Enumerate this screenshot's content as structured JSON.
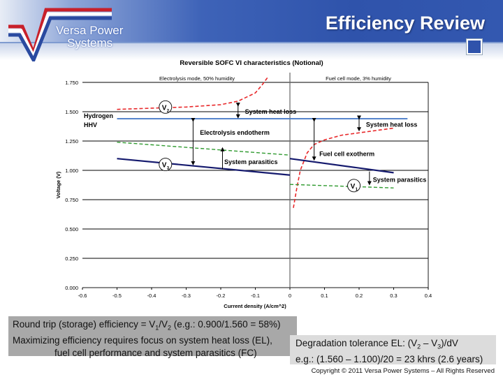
{
  "header": {
    "title": "Efficiency Review",
    "logo_text": [
      "Versa Power",
      "Systems"
    ]
  },
  "chart_data": {
    "type": "line",
    "title": "Reversible SOFC VI characteristics (Notional)",
    "xlabel": "Current density (A/cm^2)",
    "ylabel": "Voltage (V)",
    "xlim": [
      -0.6,
      0.4
    ],
    "ylim": [
      0,
      1.75
    ],
    "xticks": [
      "-0.6",
      "-0.5",
      "-0.4",
      "-0.3",
      "-0.2",
      "-0.1",
      "0",
      "0.1",
      "0.2",
      "0.3",
      "0.4"
    ],
    "yticks": [
      "0.000",
      "0.250",
      "0.500",
      "0.750",
      "1.000",
      "1.250",
      "1.500",
      "1.750"
    ],
    "grid": true,
    "region_labels": [
      "Electrolysis mode, 50% humidity",
      "Fuel cell mode, 3% humidity"
    ],
    "hhv_label": [
      "Hydrogen",
      "HHV"
    ],
    "colors": {
      "red": "#e8282a",
      "green": "#2f9a2f",
      "navy": "#151a6e",
      "blue": "#4a7cc8"
    },
    "series": [
      {
        "style": "red-dashed",
        "x": [
          -0.5,
          -0.4,
          -0.3,
          -0.2,
          -0.15,
          -0.1,
          -0.08,
          -0.065
        ],
        "y": [
          1.52,
          1.53,
          1.54,
          1.56,
          1.59,
          1.66,
          1.73,
          1.79
        ]
      },
      {
        "style": "red-dashed",
        "x": [
          0.01,
          0.02,
          0.03,
          0.05,
          0.07,
          0.1,
          0.15,
          0.2,
          0.3
        ],
        "y": [
          0.68,
          0.85,
          1.0,
          1.15,
          1.22,
          1.26,
          1.3,
          1.32,
          1.36
        ]
      },
      {
        "style": "blue-solid",
        "x": [
          -0.5,
          0.34
        ],
        "y": [
          1.44,
          1.44
        ]
      },
      {
        "style": "green-dashed",
        "x": [
          -0.5,
          0
        ],
        "y": [
          1.24,
          1.13
        ]
      },
      {
        "style": "green-dashed",
        "x": [
          0,
          0.3
        ],
        "y": [
          0.88,
          0.85
        ]
      },
      {
        "style": "navy-solid",
        "x": [
          -0.5,
          0
        ],
        "y": [
          1.1,
          0.96
        ]
      },
      {
        "style": "navy-solid",
        "x": [
          0,
          0.3
        ],
        "y": [
          1.1,
          0.98
        ]
      }
    ],
    "markers": [
      {
        "label": "V",
        "sub": "2",
        "x": -0.36,
        "y": 1.54
      },
      {
        "label": "V",
        "sub": "3",
        "x": -0.36,
        "y": 1.05
      },
      {
        "label": "V",
        "sub": "1",
        "x": 0.185,
        "y": 0.87
      }
    ],
    "annotations": [
      {
        "text": "System heat loss",
        "x": -0.13,
        "y": 1.5,
        "arrow": [
          -0.15,
          1.56,
          1.46,
          "both"
        ]
      },
      {
        "text": "Electrolysis endotherm",
        "x": -0.26,
        "y": 1.32,
        "arrow": [
          -0.28,
          1.43,
          1.06,
          "both"
        ]
      },
      {
        "text": "System parasitics",
        "x": -0.19,
        "y": 1.07,
        "arrow": [
          -0.195,
          1.01,
          1.18,
          "up"
        ]
      },
      {
        "text": "System heat loss",
        "x": 0.22,
        "y": 1.39,
        "arrow": [
          0.2,
          1.45,
          1.35,
          "both"
        ]
      },
      {
        "text": "Fuel cell exotherm",
        "x": 0.085,
        "y": 1.14,
        "arrow": [
          0.07,
          1.43,
          1.1,
          "both"
        ]
      },
      {
        "text": "System parasitics",
        "x": 0.24,
        "y": 0.92,
        "arrow": [
          0.23,
          0.99,
          0.89,
          "down"
        ]
      }
    ]
  },
  "notes": {
    "box1_line1": [
      "Round trip (storage) efficiency = V",
      "1",
      "/V",
      "2",
      " (e.g.: 0.900/1.560 = 58%)"
    ],
    "box1_line2": "Maximizing efficiency requires focus on system heat loss (EL),",
    "box1_line3": "fuel cell performance and system parasitics (FC)",
    "box2_line1": [
      "Degradation tolerance EL: (V",
      "2",
      " – V",
      "3",
      ")/dV"
    ],
    "box2_line2": "e.g.: (1.560 – 1.100)/20 = 23 khrs (2.6 years)"
  },
  "footer": {
    "copyright": "Copyright © 2011 Versa Power Systems – All Rights Reserved"
  }
}
